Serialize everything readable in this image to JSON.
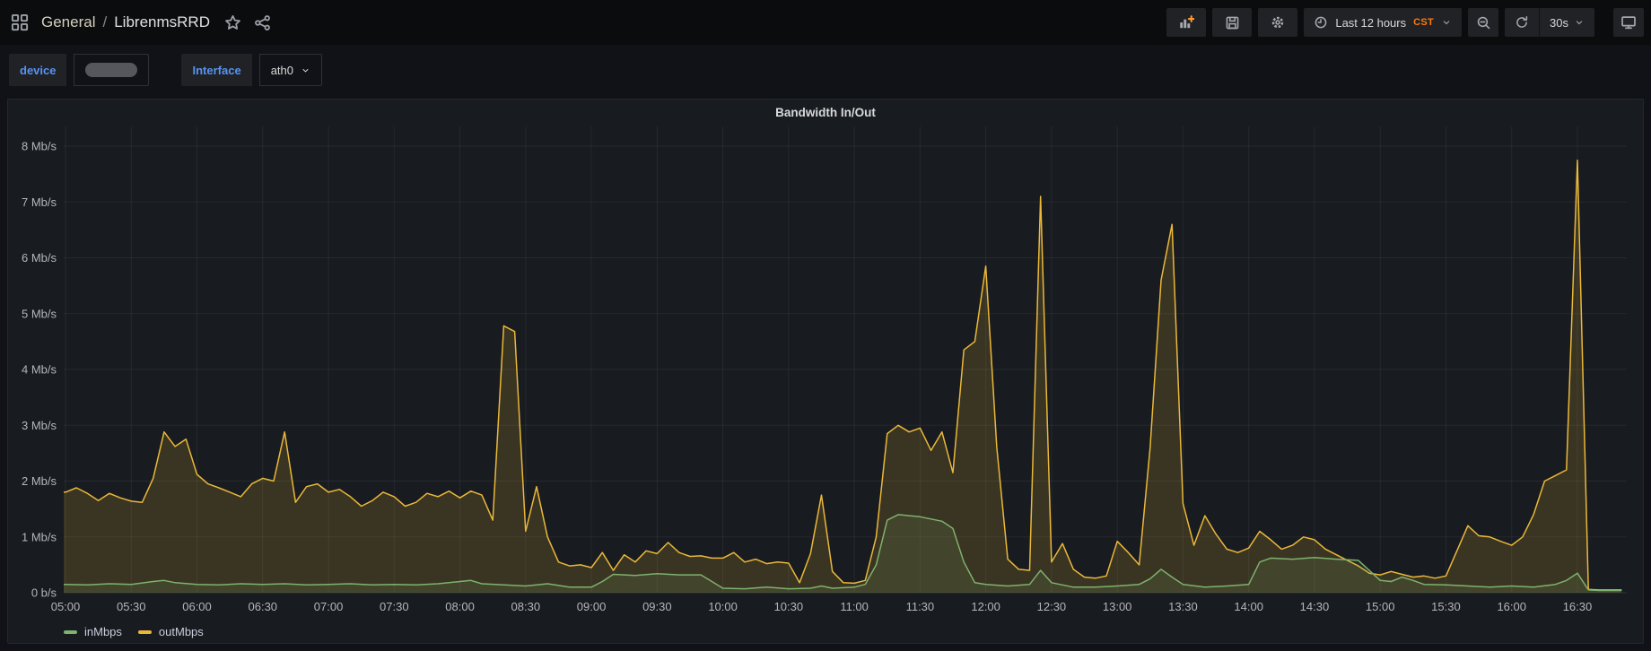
{
  "topnav": {
    "breadcrumb": {
      "folder": "General",
      "separator": "/",
      "dashboard": "LibrenmsRRD"
    },
    "nav_icons": [
      "apps-grid-icon",
      "star-icon",
      "share-icon"
    ],
    "toolbar": {
      "buttons": [
        "add-panel",
        "save-dashboard",
        "dashboard-settings"
      ],
      "time_picker": {
        "icon": "clock-icon",
        "label": "Last 12 hours",
        "timezone": "CST"
      },
      "zoom_out_icon": "magnifier-minus-icon",
      "refresh": {
        "icon": "refresh-icon",
        "interval": "30s"
      },
      "kiosk_icon": "monitor-icon"
    }
  },
  "variables": {
    "device": {
      "label": "device",
      "value_redacted": true
    },
    "interface": {
      "label": "Interface",
      "value": "ath0"
    }
  },
  "panel": {
    "title": "Bandwidth In/Out"
  },
  "colors": {
    "accent_blue": "#5794F2",
    "accent_orange": "#FF780A",
    "in_green": "#7EB26D",
    "out_yellow": "#EAB839",
    "panel_bg": "#181b1f",
    "page_bg": "#111217"
  },
  "chart_data": {
    "type": "area",
    "title": "Bandwidth In/Out",
    "unit": "Mb/s",
    "ylim": [
      0,
      8.35
    ],
    "grid": true,
    "legend_position": "bottom-left",
    "y_ticks": [
      {
        "value": 8,
        "label": "8 Mb/s"
      },
      {
        "value": 7,
        "label": "7 Mb/s"
      },
      {
        "value": 6,
        "label": "6 Mb/s"
      },
      {
        "value": 5,
        "label": "5 Mb/s"
      },
      {
        "value": 4,
        "label": "4 Mb/s"
      },
      {
        "value": 3,
        "label": "3 Mb/s"
      },
      {
        "value": 2,
        "label": "2 Mb/s"
      },
      {
        "value": 1,
        "label": "1 Mb/s"
      },
      {
        "value": 0,
        "label": "0 b/s"
      }
    ],
    "x_ticks": [
      "05:00",
      "05:30",
      "06:00",
      "06:30",
      "07:00",
      "07:30",
      "08:00",
      "08:30",
      "09:00",
      "09:30",
      "10:00",
      "10:30",
      "11:00",
      "11:30",
      "12:00",
      "12:30",
      "13:00",
      "13:30",
      "14:00",
      "14:30",
      "15:00",
      "15:30",
      "16:00",
      "16:30"
    ],
    "series": [
      {
        "name": "inMbps",
        "color": "#7EB26D",
        "fill": "rgba(126,178,109,0.13)",
        "points": [
          [
            "04:55",
            0.14
          ],
          [
            "05:00",
            0.15
          ],
          [
            "05:10",
            0.14
          ],
          [
            "05:20",
            0.16
          ],
          [
            "05:30",
            0.15
          ],
          [
            "05:40",
            0.2
          ],
          [
            "05:45",
            0.22
          ],
          [
            "05:50",
            0.18
          ],
          [
            "06:00",
            0.15
          ],
          [
            "06:10",
            0.14
          ],
          [
            "06:20",
            0.16
          ],
          [
            "06:30",
            0.15
          ],
          [
            "06:40",
            0.16
          ],
          [
            "06:50",
            0.14
          ],
          [
            "07:00",
            0.15
          ],
          [
            "07:10",
            0.16
          ],
          [
            "07:20",
            0.14
          ],
          [
            "07:30",
            0.15
          ],
          [
            "07:40",
            0.14
          ],
          [
            "07:50",
            0.16
          ],
          [
            "08:00",
            0.2
          ],
          [
            "08:05",
            0.22
          ],
          [
            "08:10",
            0.16
          ],
          [
            "08:20",
            0.14
          ],
          [
            "08:30",
            0.12
          ],
          [
            "08:40",
            0.16
          ],
          [
            "08:50",
            0.1
          ],
          [
            "09:00",
            0.1
          ],
          [
            "09:05",
            0.2
          ],
          [
            "09:10",
            0.33
          ],
          [
            "09:20",
            0.31
          ],
          [
            "09:30",
            0.34
          ],
          [
            "09:40",
            0.32
          ],
          [
            "09:50",
            0.32
          ],
          [
            "09:55",
            0.2
          ],
          [
            "10:00",
            0.08
          ],
          [
            "10:10",
            0.07
          ],
          [
            "10:20",
            0.1
          ],
          [
            "10:30",
            0.07
          ],
          [
            "10:40",
            0.08
          ],
          [
            "10:45",
            0.12
          ],
          [
            "10:50",
            0.08
          ],
          [
            "11:00",
            0.1
          ],
          [
            "11:05",
            0.15
          ],
          [
            "11:10",
            0.5
          ],
          [
            "11:15",
            1.3
          ],
          [
            "11:20",
            1.4
          ],
          [
            "11:25",
            1.38
          ],
          [
            "11:30",
            1.36
          ],
          [
            "11:35",
            1.32
          ],
          [
            "11:40",
            1.28
          ],
          [
            "11:45",
            1.15
          ],
          [
            "11:50",
            0.55
          ],
          [
            "11:55",
            0.18
          ],
          [
            "12:00",
            0.15
          ],
          [
            "12:10",
            0.12
          ],
          [
            "12:20",
            0.15
          ],
          [
            "12:25",
            0.4
          ],
          [
            "12:30",
            0.18
          ],
          [
            "12:40",
            0.1
          ],
          [
            "12:50",
            0.1
          ],
          [
            "13:00",
            0.12
          ],
          [
            "13:10",
            0.15
          ],
          [
            "13:15",
            0.25
          ],
          [
            "13:20",
            0.42
          ],
          [
            "13:25",
            0.28
          ],
          [
            "13:30",
            0.15
          ],
          [
            "13:40",
            0.1
          ],
          [
            "13:50",
            0.12
          ],
          [
            "14:00",
            0.15
          ],
          [
            "14:05",
            0.55
          ],
          [
            "14:10",
            0.62
          ],
          [
            "14:20",
            0.6
          ],
          [
            "14:30",
            0.63
          ],
          [
            "14:40",
            0.6
          ],
          [
            "14:50",
            0.58
          ],
          [
            "14:55",
            0.4
          ],
          [
            "15:00",
            0.22
          ],
          [
            "15:05",
            0.2
          ],
          [
            "15:10",
            0.28
          ],
          [
            "15:15",
            0.22
          ],
          [
            "15:20",
            0.15
          ],
          [
            "15:30",
            0.14
          ],
          [
            "15:40",
            0.12
          ],
          [
            "15:50",
            0.1
          ],
          [
            "16:00",
            0.12
          ],
          [
            "16:10",
            0.1
          ],
          [
            "16:20",
            0.15
          ],
          [
            "16:25",
            0.22
          ],
          [
            "16:30",
            0.35
          ],
          [
            "16:35",
            0.05
          ],
          [
            "16:40",
            0.04
          ],
          [
            "16:50",
            0.04
          ]
        ]
      },
      {
        "name": "outMbps",
        "color": "#EAB839",
        "fill": "rgba(234,184,57,0.16)",
        "points": [
          [
            "04:55",
            1.82
          ],
          [
            "05:00",
            1.8
          ],
          [
            "05:05",
            1.88
          ],
          [
            "05:10",
            1.78
          ],
          [
            "05:15",
            1.65
          ],
          [
            "05:20",
            1.78
          ],
          [
            "05:25",
            1.7
          ],
          [
            "05:30",
            1.64
          ],
          [
            "05:35",
            1.62
          ],
          [
            "05:40",
            2.05
          ],
          [
            "05:45",
            2.88
          ],
          [
            "05:50",
            2.62
          ],
          [
            "05:55",
            2.75
          ],
          [
            "06:00",
            2.12
          ],
          [
            "06:05",
            1.95
          ],
          [
            "06:10",
            1.88
          ],
          [
            "06:15",
            1.8
          ],
          [
            "06:20",
            1.72
          ],
          [
            "06:25",
            1.95
          ],
          [
            "06:30",
            2.05
          ],
          [
            "06:35",
            2.0
          ],
          [
            "06:40",
            2.88
          ],
          [
            "06:45",
            1.62
          ],
          [
            "06:50",
            1.9
          ],
          [
            "06:55",
            1.95
          ],
          [
            "07:00",
            1.8
          ],
          [
            "07:05",
            1.85
          ],
          [
            "07:10",
            1.72
          ],
          [
            "07:15",
            1.55
          ],
          [
            "07:20",
            1.65
          ],
          [
            "07:25",
            1.8
          ],
          [
            "07:30",
            1.72
          ],
          [
            "07:35",
            1.55
          ],
          [
            "07:40",
            1.62
          ],
          [
            "07:45",
            1.78
          ],
          [
            "07:50",
            1.72
          ],
          [
            "07:55",
            1.82
          ],
          [
            "08:00",
            1.7
          ],
          [
            "08:05",
            1.82
          ],
          [
            "08:10",
            1.75
          ],
          [
            "08:15",
            1.3
          ],
          [
            "08:20",
            4.78
          ],
          [
            "08:25",
            4.68
          ],
          [
            "08:30",
            1.1
          ],
          [
            "08:35",
            1.9
          ],
          [
            "08:40",
            1.0
          ],
          [
            "08:45",
            0.55
          ],
          [
            "08:50",
            0.48
          ],
          [
            "08:55",
            0.5
          ],
          [
            "09:00",
            0.45
          ],
          [
            "09:05",
            0.72
          ],
          [
            "09:10",
            0.4
          ],
          [
            "09:15",
            0.68
          ],
          [
            "09:20",
            0.55
          ],
          [
            "09:25",
            0.75
          ],
          [
            "09:30",
            0.7
          ],
          [
            "09:35",
            0.9
          ],
          [
            "09:40",
            0.72
          ],
          [
            "09:45",
            0.65
          ],
          [
            "09:50",
            0.66
          ],
          [
            "09:55",
            0.62
          ],
          [
            "10:00",
            0.62
          ],
          [
            "10:05",
            0.72
          ],
          [
            "10:10",
            0.55
          ],
          [
            "10:15",
            0.6
          ],
          [
            "10:20",
            0.52
          ],
          [
            "10:25",
            0.55
          ],
          [
            "10:30",
            0.53
          ],
          [
            "10:35",
            0.18
          ],
          [
            "10:40",
            0.7
          ],
          [
            "10:45",
            1.75
          ],
          [
            "10:50",
            0.38
          ],
          [
            "10:55",
            0.18
          ],
          [
            "11:00",
            0.17
          ],
          [
            "11:05",
            0.22
          ],
          [
            "11:10",
            1.0
          ],
          [
            "11:15",
            2.85
          ],
          [
            "11:20",
            3.0
          ],
          [
            "11:25",
            2.88
          ],
          [
            "11:30",
            2.95
          ],
          [
            "11:35",
            2.55
          ],
          [
            "11:40",
            2.88
          ],
          [
            "11:45",
            2.15
          ],
          [
            "11:50",
            4.35
          ],
          [
            "11:55",
            4.5
          ],
          [
            "12:00",
            5.85
          ],
          [
            "12:05",
            2.6
          ],
          [
            "12:10",
            0.6
          ],
          [
            "12:15",
            0.42
          ],
          [
            "12:20",
            0.4
          ],
          [
            "12:25",
            7.1
          ],
          [
            "12:30",
            0.55
          ],
          [
            "12:35",
            0.88
          ],
          [
            "12:40",
            0.42
          ],
          [
            "12:45",
            0.28
          ],
          [
            "12:50",
            0.26
          ],
          [
            "12:55",
            0.3
          ],
          [
            "13:00",
            0.92
          ],
          [
            "13:05",
            0.72
          ],
          [
            "13:10",
            0.5
          ],
          [
            "13:15",
            2.6
          ],
          [
            "13:20",
            5.6
          ],
          [
            "13:25",
            6.6
          ],
          [
            "13:30",
            1.6
          ],
          [
            "13:35",
            0.85
          ],
          [
            "13:40",
            1.38
          ],
          [
            "13:45",
            1.05
          ],
          [
            "13:50",
            0.78
          ],
          [
            "13:55",
            0.72
          ],
          [
            "14:00",
            0.8
          ],
          [
            "14:05",
            1.1
          ],
          [
            "14:10",
            0.95
          ],
          [
            "14:15",
            0.78
          ],
          [
            "14:20",
            0.85
          ],
          [
            "14:25",
            1.0
          ],
          [
            "14:30",
            0.95
          ],
          [
            "14:35",
            0.78
          ],
          [
            "14:40",
            0.68
          ],
          [
            "14:45",
            0.58
          ],
          [
            "14:50",
            0.48
          ],
          [
            "14:55",
            0.35
          ],
          [
            "15:00",
            0.32
          ],
          [
            "15:05",
            0.38
          ],
          [
            "15:10",
            0.33
          ],
          [
            "15:15",
            0.28
          ],
          [
            "15:20",
            0.3
          ],
          [
            "15:25",
            0.26
          ],
          [
            "15:30",
            0.3
          ],
          [
            "15:35",
            0.75
          ],
          [
            "15:40",
            1.2
          ],
          [
            "15:45",
            1.02
          ],
          [
            "15:50",
            1.0
          ],
          [
            "15:55",
            0.92
          ],
          [
            "16:00",
            0.85
          ],
          [
            "16:05",
            1.0
          ],
          [
            "16:10",
            1.4
          ],
          [
            "16:15",
            2.0
          ],
          [
            "16:20",
            2.1
          ],
          [
            "16:25",
            2.2
          ],
          [
            "16:30",
            7.75
          ],
          [
            "16:35",
            0.06
          ],
          [
            "16:40",
            0.05
          ],
          [
            "16:50",
            0.05
          ]
        ]
      }
    ]
  }
}
